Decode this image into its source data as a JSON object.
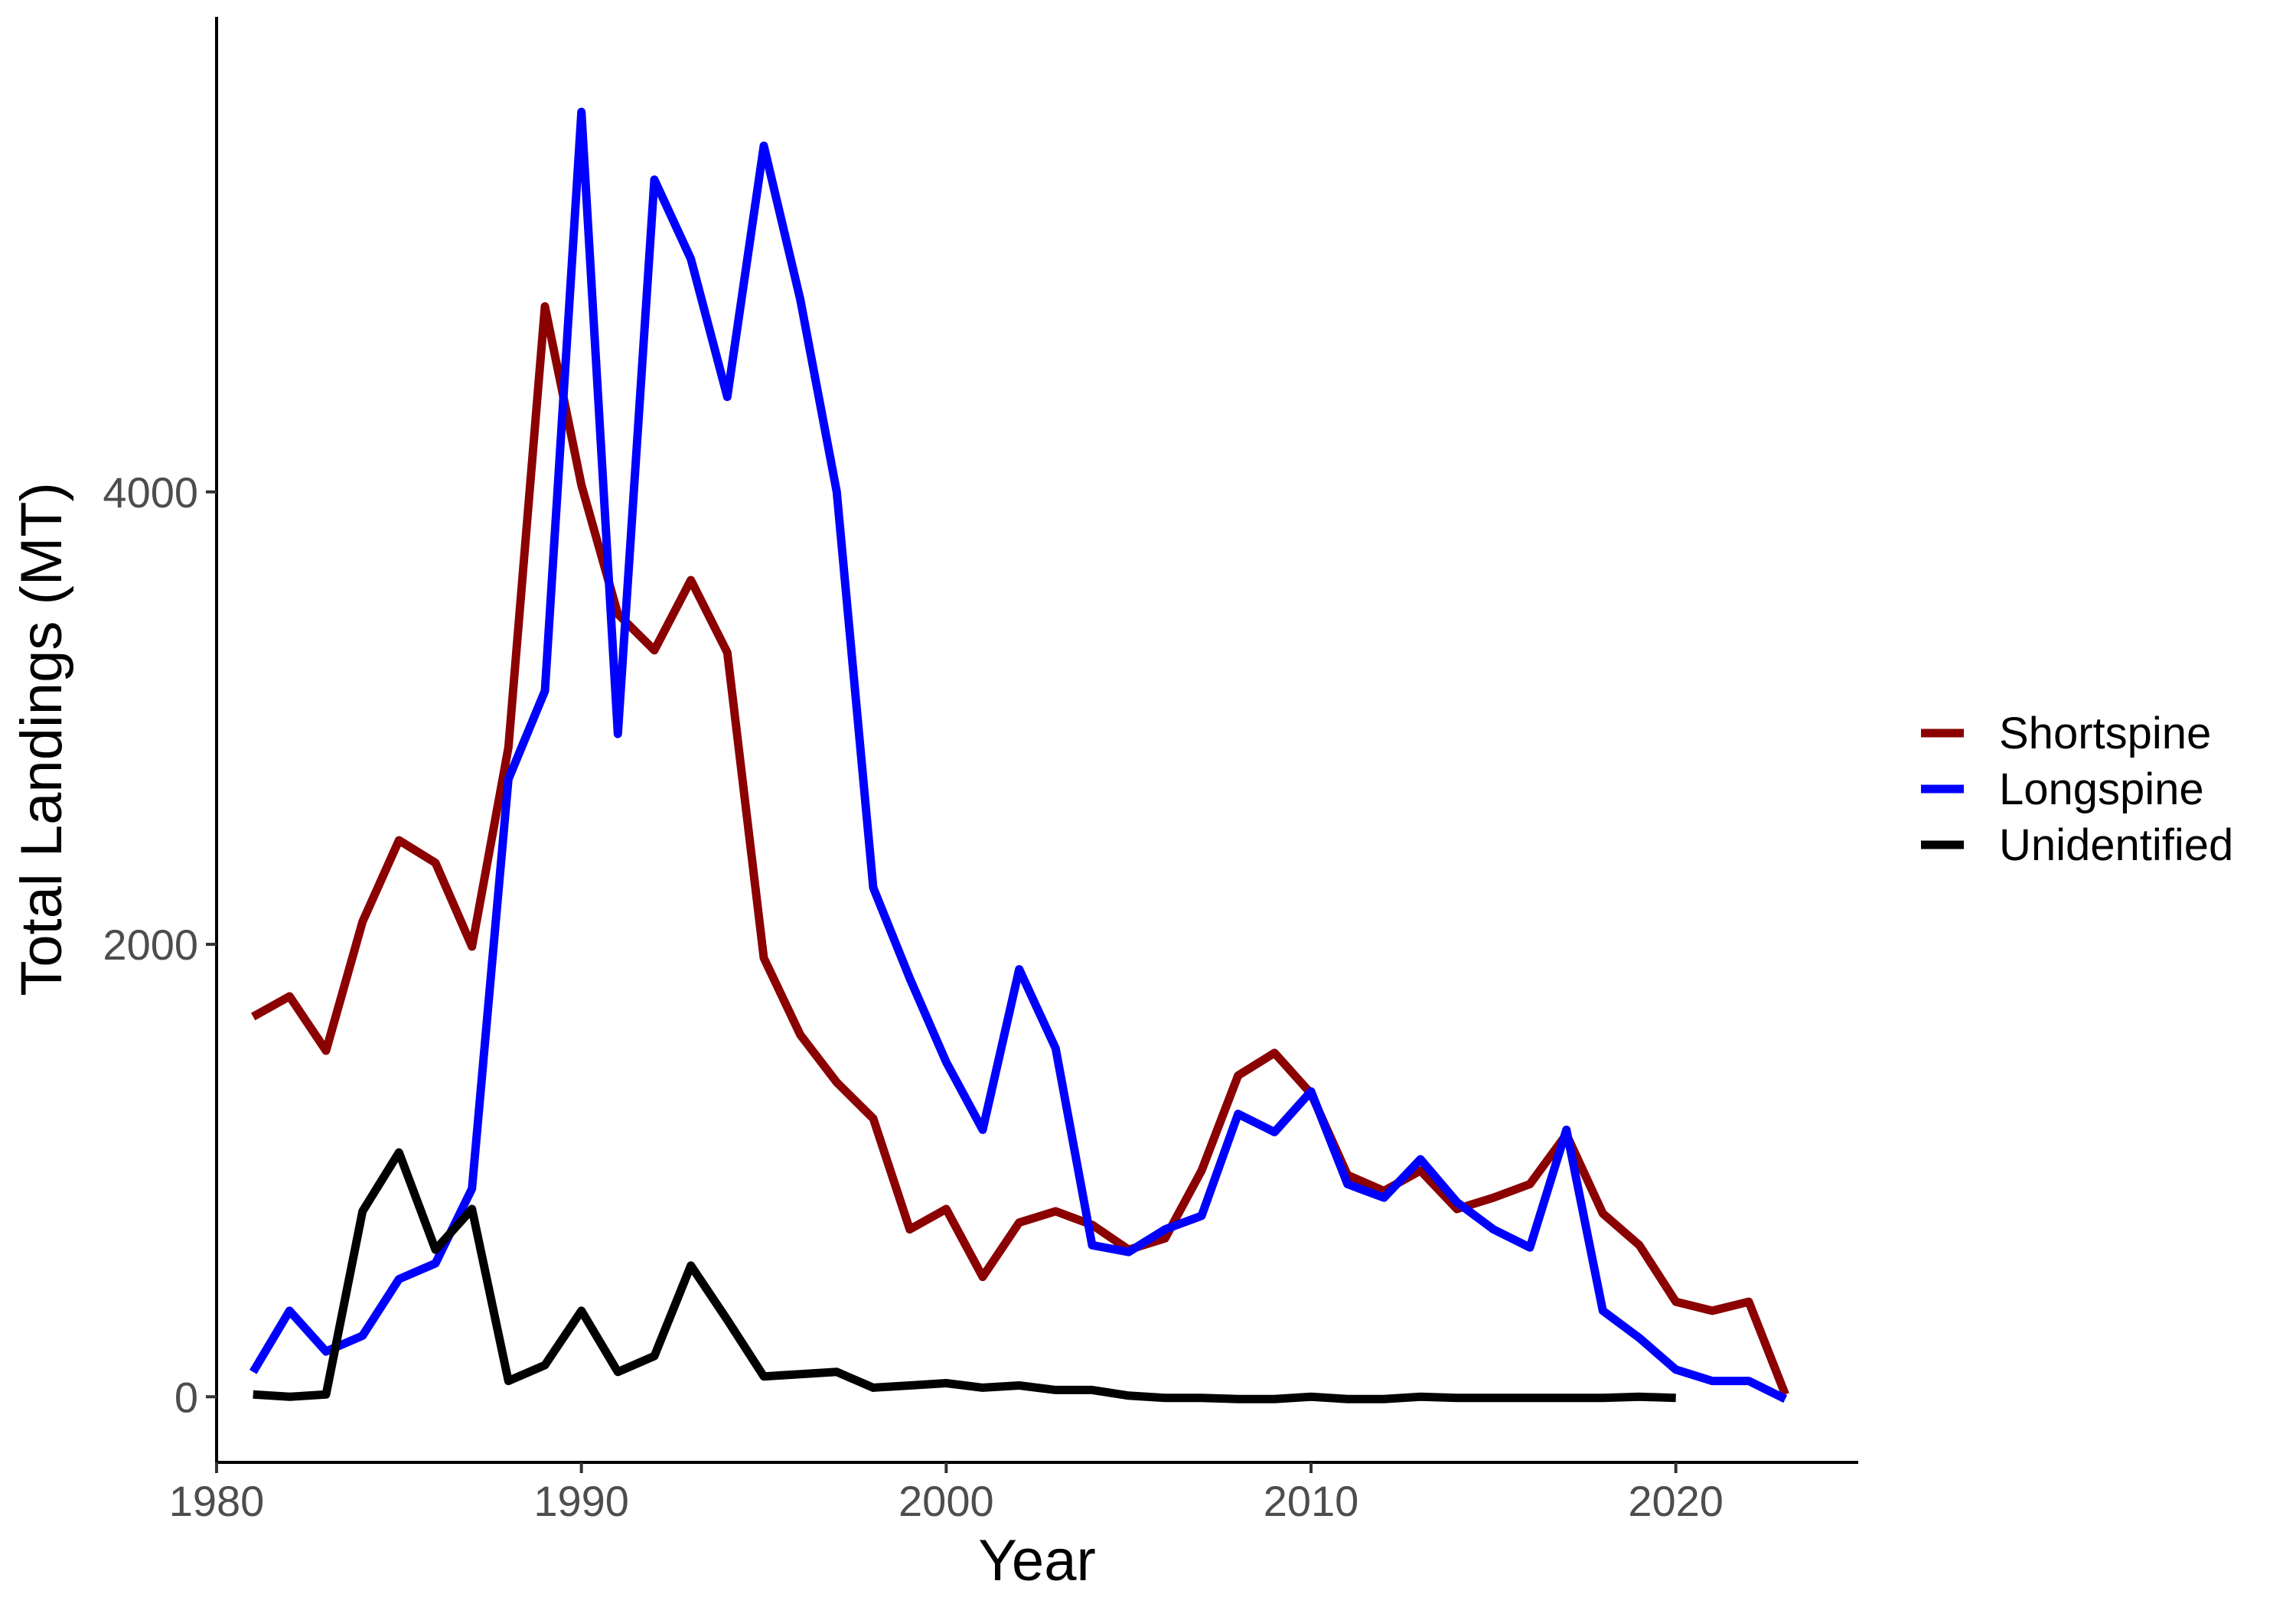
{
  "chart_data": {
    "type": "line",
    "title": "",
    "xlabel": "Year",
    "ylabel": "Total Landings (MT)",
    "xlim": [
      1980,
      2025
    ],
    "ylim": [
      -290,
      6100
    ],
    "x_ticks": [
      1980,
      1990,
      2000,
      2010,
      2020
    ],
    "y_ticks": [
      0,
      2000,
      4000
    ],
    "grid": false,
    "legend_position": "right",
    "series": [
      {
        "name": "Shortspine",
        "color": "#8b0000",
        "x": [
          1981,
          1982,
          1983,
          1984,
          1985,
          1986,
          1987,
          1988,
          1989,
          1990,
          1991,
          1992,
          1993,
          1994,
          1995,
          1996,
          1997,
          1998,
          1999,
          2000,
          2001,
          2002,
          2003,
          2004,
          2005,
          2006,
          2007,
          2008,
          2009,
          2010,
          2011,
          2012,
          2013,
          2014,
          2015,
          2016,
          2017,
          2018,
          2019,
          2020,
          2021,
          2022,
          2023
        ],
        "y": [
          1680,
          1770,
          1530,
          2100,
          2460,
          2360,
          1990,
          2870,
          4820,
          4030,
          3460,
          3300,
          3610,
          3290,
          1940,
          1600,
          1390,
          1230,
          740,
          830,
          530,
          770,
          820,
          760,
          650,
          700,
          1000,
          1420,
          1520,
          1340,
          980,
          910,
          1000,
          830,
          880,
          940,
          1160,
          810,
          670,
          420,
          380,
          420,
          10
        ]
      },
      {
        "name": "Longspine",
        "color": "#0000ff",
        "x": [
          1981,
          1982,
          1983,
          1984,
          1985,
          1986,
          1987,
          1988,
          1989,
          1990,
          1991,
          1992,
          1993,
          1994,
          1995,
          1996,
          1997,
          1998,
          1999,
          2000,
          2001,
          2002,
          2003,
          2004,
          2005,
          2006,
          2007,
          2008,
          2009,
          2010,
          2011,
          2012,
          2013,
          2014,
          2015,
          2016,
          2017,
          2018,
          2019,
          2020,
          2021,
          2022,
          2023
        ],
        "y": [
          110,
          380,
          200,
          270,
          520,
          590,
          920,
          2730,
          3120,
          5680,
          2930,
          5380,
          5030,
          4420,
          5530,
          4850,
          4000,
          2250,
          1850,
          1480,
          1180,
          1890,
          1540,
          670,
          640,
          740,
          800,
          1250,
          1170,
          1350,
          940,
          880,
          1050,
          860,
          740,
          660,
          1180,
          380,
          260,
          120,
          70,
          70,
          -10
        ]
      },
      {
        "name": "Unidentified",
        "color": "#000000",
        "x": [
          1981,
          1982,
          1983,
          1984,
          1985,
          1986,
          1987,
          1988,
          1989,
          1990,
          1991,
          1992,
          1993,
          1994,
          1995,
          1996,
          1997,
          1998,
          1999,
          2000,
          2001,
          2002,
          2003,
          2004,
          2005,
          2006,
          2007,
          2008,
          2009,
          2010,
          2011,
          2012,
          2013,
          2014,
          2015,
          2016,
          2017,
          2018,
          2019,
          2020
        ],
        "y": [
          10,
          0,
          10,
          820,
          1080,
          650,
          830,
          70,
          140,
          380,
          110,
          180,
          580,
          340,
          90,
          100,
          110,
          40,
          50,
          60,
          40,
          50,
          30,
          30,
          5,
          -5,
          -5,
          -10,
          -10,
          0,
          -10,
          -10,
          0,
          -5,
          -5,
          -5,
          -5,
          -5,
          0,
          -5
        ]
      }
    ]
  }
}
